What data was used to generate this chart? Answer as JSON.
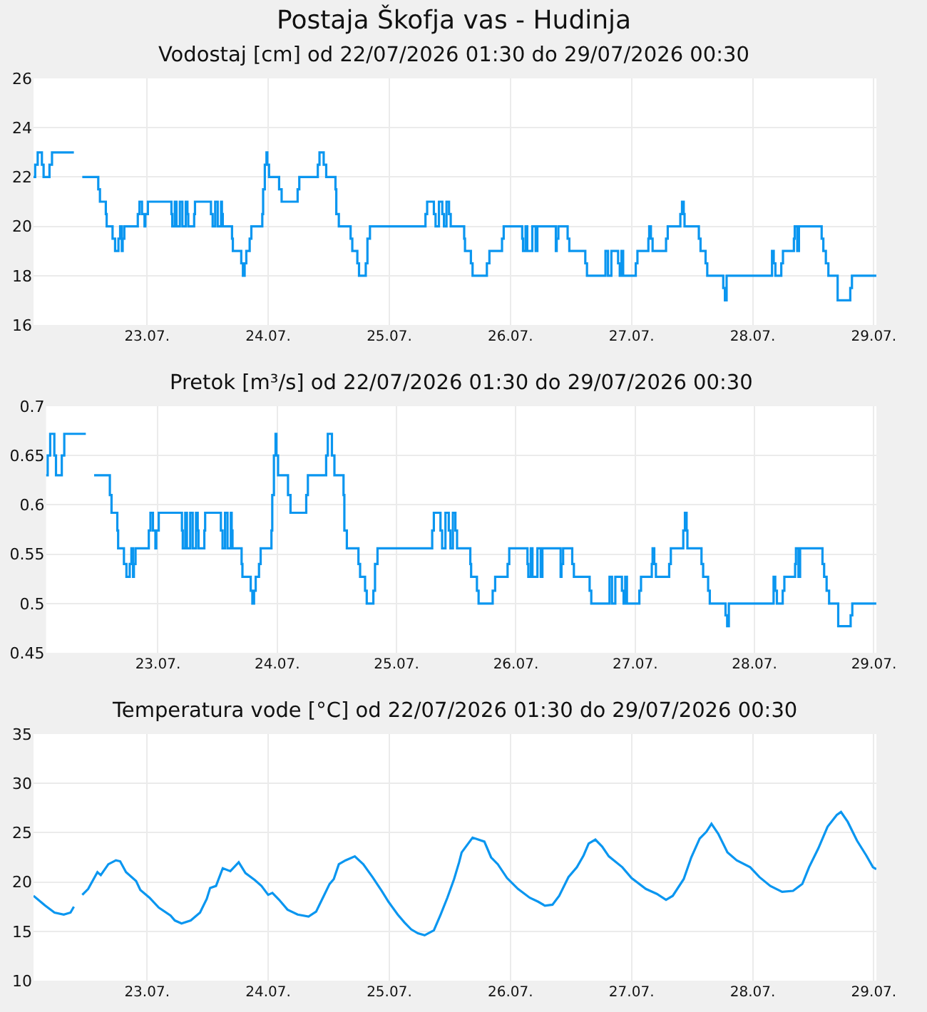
{
  "chart_data": [
    {
      "type": "step",
      "title": "Postaja Škofja vas - Hudinja",
      "subtitle": "Vodostaj [cm] od 22/07/2026 01:30 do 29/07/2026 00:30",
      "grid": true,
      "xlim": [
        "2026-07-22T01:30",
        "2026-07-29T00:30"
      ],
      "xticks": [
        {
          "value": "2026-07-23",
          "label": "23.07."
        },
        {
          "value": "2026-07-24",
          "label": "24.07."
        },
        {
          "value": "2026-07-25",
          "label": "25.07."
        },
        {
          "value": "2026-07-26",
          "label": "26.07."
        },
        {
          "value": "2026-07-27",
          "label": "27.07."
        },
        {
          "value": "2026-07-28",
          "label": "28.07."
        },
        {
          "value": "2026-07-29",
          "label": "29.07."
        }
      ],
      "ylim": [
        16,
        26
      ],
      "yticks": [
        16,
        18,
        20,
        22,
        24,
        26
      ],
      "x": [
        "2026-07-22T01:30",
        "2026-07-22T01:50",
        "2026-07-22T02:20",
        "2026-07-22T03:10",
        "2026-07-22T03:30",
        "2026-07-22T04:40",
        "2026-07-22T05:10",
        "2026-07-22T09:30",
        "2026-07-22T10:00",
        "2026-07-22T11:10",
        "2026-07-22T14:20",
        "2026-07-22T14:40",
        "2026-07-22T15:50",
        "2026-07-22T16:00",
        "2026-07-22T17:10",
        "2026-07-22T17:40",
        "2026-07-22T18:20",
        "2026-07-22T18:40",
        "2026-07-22T19:00",
        "2026-07-22T19:10",
        "2026-07-22T19:30",
        "2026-07-22T22:10",
        "2026-07-22T22:30",
        "2026-07-22T23:00",
        "2026-07-22T23:30",
        "2026-07-22T23:40",
        "2026-07-23T00:10",
        "2026-07-23T04:50",
        "2026-07-23T05:00",
        "2026-07-23T05:30",
        "2026-07-23T05:50",
        "2026-07-23T06:30",
        "2026-07-23T07:00",
        "2026-07-23T07:40",
        "2026-07-23T08:00",
        "2026-07-23T08:10",
        "2026-07-23T09:20",
        "2026-07-23T09:30",
        "2026-07-23T12:40",
        "2026-07-23T13:00",
        "2026-07-23T13:30",
        "2026-07-23T14:00",
        "2026-07-23T14:40",
        "2026-07-23T14:50",
        "2026-07-23T15:00",
        "2026-07-23T16:50",
        "2026-07-23T17:00",
        "2026-07-23T18:40",
        "2026-07-23T19:00",
        "2026-07-23T19:20",
        "2026-07-23T19:40",
        "2026-07-23T20:20",
        "2026-07-23T20:40",
        "2026-07-23T22:50",
        "2026-07-23T23:00",
        "2026-07-23T23:20",
        "2026-07-23T23:40",
        "2026-07-23T23:50",
        "2026-07-24T00:10",
        "2026-07-24T02:10",
        "2026-07-24T02:40",
        "2026-07-24T05:50",
        "2026-07-24T06:10",
        "2026-07-24T09:50",
        "2026-07-24T10:10",
        "2026-07-24T11:00",
        "2026-07-24T11:30",
        "2026-07-24T13:20",
        "2026-07-24T13:30",
        "2026-07-24T14:00",
        "2026-07-24T16:20",
        "2026-07-24T16:40",
        "2026-07-24T17:40",
        "2026-07-24T18:00",
        "2026-07-24T19:20",
        "2026-07-24T19:40",
        "2026-07-24T20:10",
        "2026-07-25T07:10",
        "2026-07-25T07:30",
        "2026-07-25T08:50",
        "2026-07-25T09:10",
        "2026-07-25T09:50",
        "2026-07-25T10:30",
        "2026-07-25T10:50",
        "2026-07-25T11:20",
        "2026-07-25T11:50",
        "2026-07-25T12:10",
        "2026-07-25T14:50",
        "2026-07-25T15:00",
        "2026-07-25T16:10",
        "2026-07-25T16:30",
        "2026-07-25T19:20",
        "2026-07-25T19:50",
        "2026-07-25T22:20",
        "2026-07-25T22:40",
        "2026-07-26T02:20",
        "2026-07-26T02:30",
        "2026-07-26T03:00",
        "2026-07-26T03:20",
        "2026-07-26T04:20",
        "2026-07-26T05:00",
        "2026-07-26T05:20",
        "2026-07-26T09:00",
        "2026-07-26T09:10",
        "2026-07-26T09:30",
        "2026-07-26T11:20",
        "2026-07-26T11:40",
        "2026-07-26T14:50",
        "2026-07-26T15:10",
        "2026-07-26T18:50",
        "2026-07-26T19:20",
        "2026-07-26T20:00",
        "2026-07-26T21:20",
        "2026-07-26T21:40",
        "2026-07-26T22:00",
        "2026-07-26T22:20",
        "2026-07-27T00:50",
        "2026-07-27T01:10",
        "2026-07-27T03:20",
        "2026-07-27T03:30",
        "2026-07-27T03:50",
        "2026-07-27T04:10",
        "2026-07-27T06:50",
        "2026-07-27T07:10",
        "2026-07-27T09:40",
        "2026-07-27T10:00",
        "2026-07-27T10:20",
        "2026-07-27T10:30",
        "2026-07-27T13:20",
        "2026-07-27T13:40",
        "2026-07-27T14:40",
        "2026-07-27T15:00",
        "2026-07-27T18:10",
        "2026-07-27T18:30",
        "2026-07-27T18:50",
        "2026-07-28T03:50",
        "2026-07-28T04:10",
        "2026-07-28T04:30",
        "2026-07-28T05:40",
        "2026-07-28T06:00",
        "2026-07-28T08:10",
        "2026-07-28T08:20",
        "2026-07-28T08:50",
        "2026-07-28T09:10",
        "2026-07-28T13:40",
        "2026-07-28T14:00",
        "2026-07-28T14:30",
        "2026-07-28T15:00",
        "2026-07-28T16:50",
        "2026-07-28T19:20",
        "2026-07-28T19:40",
        "2026-07-29T00:30"
      ],
      "series": [
        {
          "color": "#0a96f0",
          "values": [
            22,
            22.5,
            23,
            22.5,
            22,
            22.5,
            23,
            23,
            null,
            22,
            21.5,
            21,
            20.5,
            20,
            19.5,
            19,
            19.5,
            20,
            19,
            19.5,
            20,
            20.5,
            21,
            20.5,
            20,
            20.5,
            21,
            20.5,
            20,
            21,
            20,
            21,
            20,
            21,
            20.5,
            20,
            20.5,
            21,
            20.5,
            20,
            21,
            20,
            21,
            20.5,
            20,
            19.5,
            19,
            18.5,
            18,
            18.5,
            19,
            19.5,
            20,
            20.5,
            21.5,
            22.5,
            23,
            22.5,
            22,
            21.5,
            21,
            21.5,
            22,
            22.5,
            23,
            22.5,
            22,
            21.5,
            20.5,
            20,
            19.5,
            19,
            18.5,
            18,
            18.5,
            19.5,
            20,
            20.5,
            21,
            20.5,
            20,
            21,
            20.5,
            20,
            21,
            20.5,
            20,
            19.5,
            19,
            18.5,
            18,
            18.5,
            19,
            19.5,
            20,
            19.5,
            19,
            20,
            19,
            20,
            19,
            20,
            19,
            19.5,
            20,
            19.5,
            19,
            18.5,
            18,
            19,
            18,
            19,
            18.5,
            18,
            19,
            18,
            18.5,
            19,
            19.5,
            20,
            19.5,
            19,
            19.5,
            20,
            20.5,
            21,
            20.5,
            20,
            19.5,
            19,
            18.5,
            18,
            17.5,
            17,
            18,
            19,
            18.5,
            18,
            18.5,
            19,
            19.5,
            20,
            19,
            20,
            19.5,
            19,
            18.5,
            18,
            17,
            17.5,
            18,
            18
          ]
        }
      ]
    },
    {
      "type": "step",
      "title": "Pretok [m³/s] od 22/07/2026 01:30 do 29/07/2026 00:30",
      "grid": true,
      "xlim": [
        "2026-07-22T01:30",
        "2026-07-29T00:30"
      ],
      "xticks": [
        {
          "value": "2026-07-23",
          "label": "23.07."
        },
        {
          "value": "2026-07-24",
          "label": "24.07."
        },
        {
          "value": "2026-07-25",
          "label": "25.07."
        },
        {
          "value": "2026-07-26",
          "label": "26.07."
        },
        {
          "value": "2026-07-27",
          "label": "27.07."
        },
        {
          "value": "2026-07-28",
          "label": "28.07."
        },
        {
          "value": "2026-07-29",
          "label": "29.07."
        }
      ],
      "ylim": [
        0.45,
        0.7
      ],
      "yticks": [
        0.45,
        0.5,
        0.55,
        0.6,
        0.65,
        0.7
      ],
      "x": [
        "2026-07-22T01:30",
        "2026-07-22T01:50",
        "2026-07-22T02:20",
        "2026-07-22T03:10",
        "2026-07-22T03:30",
        "2026-07-22T04:40",
        "2026-07-22T05:10",
        "2026-07-22T09:30",
        "2026-07-22T10:00",
        "2026-07-22T11:10",
        "2026-07-22T14:20",
        "2026-07-22T14:40",
        "2026-07-22T15:50",
        "2026-07-22T16:00",
        "2026-07-22T17:10",
        "2026-07-22T17:40",
        "2026-07-22T18:20",
        "2026-07-22T18:40",
        "2026-07-22T19:00",
        "2026-07-22T19:10",
        "2026-07-22T19:30",
        "2026-07-22T22:10",
        "2026-07-22T22:30",
        "2026-07-22T23:00",
        "2026-07-22T23:30",
        "2026-07-22T23:40",
        "2026-07-23T00:10",
        "2026-07-23T04:50",
        "2026-07-23T05:00",
        "2026-07-23T05:30",
        "2026-07-23T05:50",
        "2026-07-23T06:30",
        "2026-07-23T07:00",
        "2026-07-23T07:40",
        "2026-07-23T08:00",
        "2026-07-23T08:10",
        "2026-07-23T09:20",
        "2026-07-23T09:30",
        "2026-07-23T12:40",
        "2026-07-23T13:00",
        "2026-07-23T13:30",
        "2026-07-23T14:00",
        "2026-07-23T14:40",
        "2026-07-23T14:50",
        "2026-07-23T15:00",
        "2026-07-23T16:50",
        "2026-07-23T17:00",
        "2026-07-23T18:40",
        "2026-07-23T19:00",
        "2026-07-23T19:20",
        "2026-07-23T19:40",
        "2026-07-23T20:20",
        "2026-07-23T20:40",
        "2026-07-23T22:50",
        "2026-07-23T23:00",
        "2026-07-23T23:20",
        "2026-07-23T23:40",
        "2026-07-23T23:50",
        "2026-07-24T00:10",
        "2026-07-24T02:10",
        "2026-07-24T02:40",
        "2026-07-24T05:50",
        "2026-07-24T06:10",
        "2026-07-24T09:50",
        "2026-07-24T10:10",
        "2026-07-24T11:00",
        "2026-07-24T11:30",
        "2026-07-24T13:20",
        "2026-07-24T13:30",
        "2026-07-24T14:00",
        "2026-07-24T16:20",
        "2026-07-24T16:40",
        "2026-07-24T17:40",
        "2026-07-24T18:00",
        "2026-07-24T19:20",
        "2026-07-24T19:40",
        "2026-07-24T20:10",
        "2026-07-25T07:10",
        "2026-07-25T07:30",
        "2026-07-25T08:50",
        "2026-07-25T09:10",
        "2026-07-25T09:50",
        "2026-07-25T10:30",
        "2026-07-25T10:50",
        "2026-07-25T11:20",
        "2026-07-25T11:50",
        "2026-07-25T12:10",
        "2026-07-25T14:50",
        "2026-07-25T15:00",
        "2026-07-25T16:10",
        "2026-07-25T16:30",
        "2026-07-25T19:20",
        "2026-07-25T19:50",
        "2026-07-25T22:20",
        "2026-07-25T22:40",
        "2026-07-26T02:20",
        "2026-07-26T02:30",
        "2026-07-26T03:00",
        "2026-07-26T03:20",
        "2026-07-26T04:20",
        "2026-07-26T05:00",
        "2026-07-26T05:20",
        "2026-07-26T09:00",
        "2026-07-26T09:10",
        "2026-07-26T09:30",
        "2026-07-26T11:20",
        "2026-07-26T11:40",
        "2026-07-26T14:50",
        "2026-07-26T15:10",
        "2026-07-26T18:50",
        "2026-07-26T19:20",
        "2026-07-26T20:00",
        "2026-07-26T21:20",
        "2026-07-26T21:40",
        "2026-07-26T22:00",
        "2026-07-26T22:20",
        "2026-07-27T00:50",
        "2026-07-27T01:10",
        "2026-07-27T03:20",
        "2026-07-27T03:30",
        "2026-07-27T03:50",
        "2026-07-27T04:10",
        "2026-07-27T06:50",
        "2026-07-27T07:10",
        "2026-07-27T09:40",
        "2026-07-27T10:00",
        "2026-07-27T10:20",
        "2026-07-27T10:30",
        "2026-07-27T13:20",
        "2026-07-27T13:40",
        "2026-07-27T14:40",
        "2026-07-27T15:00",
        "2026-07-27T18:10",
        "2026-07-27T18:30",
        "2026-07-27T18:50",
        "2026-07-28T03:50",
        "2026-07-28T04:10",
        "2026-07-28T04:30",
        "2026-07-28T05:40",
        "2026-07-28T06:00",
        "2026-07-28T08:10",
        "2026-07-28T08:20",
        "2026-07-28T08:50",
        "2026-07-28T09:10",
        "2026-07-28T13:40",
        "2026-07-28T14:00",
        "2026-07-28T14:30",
        "2026-07-28T15:00",
        "2026-07-28T16:50",
        "2026-07-28T19:20",
        "2026-07-28T19:40",
        "2026-07-29T00:30"
      ],
      "series": [
        {
          "color": "#0a96f0",
          "values": [
            0.63,
            0.65,
            0.672,
            0.65,
            0.63,
            0.65,
            0.672,
            0.672,
            null,
            0.63,
            0.61,
            0.592,
            0.574,
            0.556,
            0.54,
            0.527,
            0.54,
            0.556,
            0.527,
            0.54,
            0.556,
            0.574,
            0.592,
            0.574,
            0.556,
            0.574,
            0.592,
            0.574,
            0.556,
            0.592,
            0.556,
            0.592,
            0.556,
            0.592,
            0.574,
            0.556,
            0.574,
            0.592,
            0.574,
            0.556,
            0.592,
            0.556,
            0.592,
            0.574,
            0.556,
            0.54,
            0.527,
            0.513,
            0.5,
            0.513,
            0.527,
            0.54,
            0.556,
            0.574,
            0.61,
            0.65,
            0.672,
            0.65,
            0.63,
            0.61,
            0.592,
            0.61,
            0.63,
            0.65,
            0.672,
            0.65,
            0.63,
            0.61,
            0.574,
            0.556,
            0.54,
            0.527,
            0.513,
            0.5,
            0.513,
            0.54,
            0.556,
            0.574,
            0.592,
            0.574,
            0.556,
            0.592,
            0.574,
            0.556,
            0.592,
            0.574,
            0.556,
            0.54,
            0.527,
            0.513,
            0.5,
            0.513,
            0.527,
            0.54,
            0.556,
            0.54,
            0.527,
            0.556,
            0.527,
            0.556,
            0.527,
            0.556,
            0.527,
            0.54,
            0.556,
            0.54,
            0.527,
            0.513,
            0.5,
            0.527,
            0.5,
            0.527,
            0.513,
            0.5,
            0.527,
            0.5,
            0.513,
            0.527,
            0.54,
            0.556,
            0.54,
            0.527,
            0.54,
            0.556,
            0.574,
            0.592,
            0.574,
            0.556,
            0.54,
            0.527,
            0.513,
            0.5,
            0.488,
            0.477,
            0.5,
            0.527,
            0.513,
            0.5,
            0.513,
            0.527,
            0.54,
            0.556,
            0.527,
            0.556,
            0.54,
            0.527,
            0.513,
            0.5,
            0.477,
            0.488,
            0.5,
            0.5
          ]
        }
      ]
    },
    {
      "type": "line",
      "title": "Temperatura vode [°C] od 22/07/2026 01:30 do 29/07/2026 00:30",
      "grid": true,
      "xlim": [
        "2026-07-22T01:30",
        "2026-07-29T00:30"
      ],
      "xticks": [
        {
          "value": "2026-07-23",
          "label": "23.07."
        },
        {
          "value": "2026-07-24",
          "label": "24.07."
        },
        {
          "value": "2026-07-25",
          "label": "25.07."
        },
        {
          "value": "2026-07-26",
          "label": "26.07."
        },
        {
          "value": "2026-07-27",
          "label": "27.07."
        },
        {
          "value": "2026-07-28",
          "label": "28.07."
        },
        {
          "value": "2026-07-29",
          "label": "29.07."
        }
      ],
      "ylim": [
        10,
        35
      ],
      "yticks": [
        10,
        15,
        20,
        25,
        30,
        35
      ],
      "x": [
        "2026-07-22T01:30",
        "2026-07-22T03:50",
        "2026-07-22T05:40",
        "2026-07-22T07:30",
        "2026-07-22T08:50",
        "2026-07-22T09:30",
        "2026-07-22T10:00",
        "2026-07-22T11:10",
        "2026-07-22T12:20",
        "2026-07-22T14:10",
        "2026-07-22T14:50",
        "2026-07-22T16:20",
        "2026-07-22T17:50",
        "2026-07-22T18:40",
        "2026-07-22T19:50",
        "2026-07-22T21:50",
        "2026-07-22T22:40",
        "2026-07-23T00:30",
        "2026-07-23T02:20",
        "2026-07-23T04:40",
        "2026-07-23T05:30",
        "2026-07-23T06:50",
        "2026-07-23T08:40",
        "2026-07-23T10:30",
        "2026-07-23T11:50",
        "2026-07-23T12:30",
        "2026-07-23T13:40",
        "2026-07-23T15:00",
        "2026-07-23T16:30",
        "2026-07-23T18:10",
        "2026-07-23T19:30",
        "2026-07-23T21:20",
        "2026-07-23T22:40",
        "2026-07-24T00:00",
        "2026-07-24T00:50",
        "2026-07-24T02:10",
        "2026-07-24T03:50",
        "2026-07-24T05:50",
        "2026-07-24T08:00",
        "2026-07-24T09:30",
        "2026-07-24T10:50",
        "2026-07-24T12:10",
        "2026-07-24T13:00",
        "2026-07-24T14:00",
        "2026-07-24T15:20",
        "2026-07-24T17:10",
        "2026-07-24T18:50",
        "2026-07-24T20:40",
        "2026-07-24T22:30",
        "2026-07-24T23:50",
        "2026-07-25T01:40",
        "2026-07-25T03:00",
        "2026-07-25T04:20",
        "2026-07-25T05:40",
        "2026-07-25T07:00",
        "2026-07-25T08:50",
        "2026-07-25T10:10",
        "2026-07-25T11:30",
        "2026-07-25T12:50",
        "2026-07-25T13:50",
        "2026-07-25T14:20",
        "2026-07-25T16:30",
        "2026-07-25T18:50",
        "2026-07-25T20:10",
        "2026-07-25T21:30",
        "2026-07-25T23:20",
        "2026-07-26T01:30",
        "2026-07-26T03:50",
        "2026-07-26T05:30",
        "2026-07-26T06:50",
        "2026-07-26T08:20",
        "2026-07-26T09:40",
        "2026-07-26T11:30",
        "2026-07-26T13:10",
        "2026-07-26T14:30",
        "2026-07-26T15:30",
        "2026-07-26T16:50",
        "2026-07-26T18:10",
        "2026-07-26T19:30",
        "2026-07-26T22:10",
        "2026-07-27T00:00",
        "2026-07-27T02:50",
        "2026-07-27T05:00",
        "2026-07-27T06:50",
        "2026-07-27T08:10",
        "2026-07-27T10:20",
        "2026-07-27T11:50",
        "2026-07-27T13:30",
        "2026-07-27T14:50",
        "2026-07-27T15:50",
        "2026-07-27T17:10",
        "2026-07-27T19:00",
        "2026-07-27T20:50",
        "2026-07-27T23:30",
        "2026-07-28T01:20",
        "2026-07-28T03:30",
        "2026-07-28T05:50",
        "2026-07-28T08:00",
        "2026-07-28T09:50",
        "2026-07-28T11:10",
        "2026-07-28T13:00",
        "2026-07-28T14:50",
        "2026-07-28T16:40",
        "2026-07-28T17:30",
        "2026-07-28T18:50",
        "2026-07-28T20:40",
        "2026-07-28T22:30",
        "2026-07-28T23:50",
        "2026-07-29T00:30"
      ],
      "series": [
        {
          "color": "#0a96f0",
          "values": [
            18.6,
            17.6,
            16.9,
            16.7,
            16.9,
            17.5,
            null,
            18.7,
            19.3,
            21.0,
            20.7,
            21.8,
            22.2,
            22.1,
            21.0,
            20.1,
            19.2,
            18.4,
            17.4,
            16.6,
            16.1,
            15.8,
            16.1,
            16.9,
            18.3,
            19.4,
            19.6,
            21.4,
            21.1,
            22.0,
            20.9,
            20.2,
            19.6,
            18.7,
            18.9,
            18.2,
            17.2,
            16.7,
            16.5,
            17.0,
            18.4,
            19.8,
            20.3,
            21.8,
            22.2,
            22.6,
            21.8,
            20.5,
            19.1,
            18.0,
            16.7,
            15.9,
            15.2,
            14.8,
            14.6,
            15.1,
            16.7,
            18.4,
            20.3,
            22.0,
            23.0,
            24.5,
            24.1,
            22.5,
            21.8,
            20.4,
            19.3,
            18.4,
            18.0,
            17.6,
            17.7,
            18.6,
            20.5,
            21.5,
            22.7,
            23.9,
            24.3,
            23.6,
            22.6,
            21.5,
            20.4,
            19.3,
            18.8,
            18.2,
            18.6,
            20.3,
            22.5,
            24.4,
            25.1,
            25.9,
            24.9,
            23.0,
            22.2,
            21.5,
            20.5,
            19.6,
            19.0,
            19.1,
            19.8,
            21.5,
            23.4,
            25.6,
            26.8,
            27.1,
            26.1,
            24.2,
            22.7,
            21.5,
            21.3
          ]
        }
      ]
    }
  ]
}
